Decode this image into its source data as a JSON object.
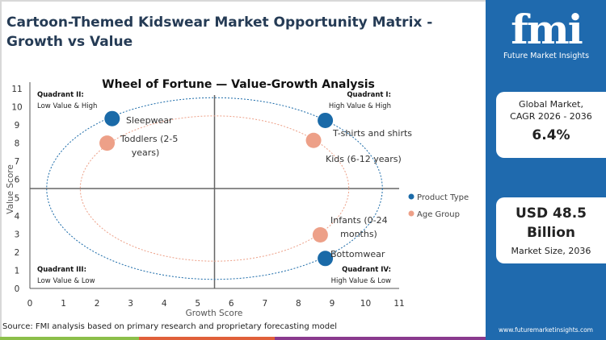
{
  "header": {
    "title": "Cartoon-Themed Kidswear Market Opportunity Matrix - Growth vs Value"
  },
  "sidebar": {
    "logo_text": "fmi",
    "logo_subtitle": "Future Market Insights",
    "cagr_label_1": "Global Market,",
    "cagr_label_2": "CAGR 2026 - 2036",
    "cagr_value": "6.4%",
    "size_value_1": "USD 48.5",
    "size_value_2": "Billion",
    "size_label": "Market Size, 2036",
    "url": "www.futuremarketinsights.com"
  },
  "footer": {
    "source": "Source: FMI analysis based on primary research and proprietary forecasting model"
  },
  "colors": {
    "product_type": "#1a6aa8",
    "age_group": "#eda088",
    "sidebar": "#1f6aae",
    "stripes": [
      "#8cbf4a",
      "#e0603a",
      "#8a3a8e"
    ]
  },
  "chart_data": {
    "type": "scatter",
    "title": "Wheel of Fortune — Value-Growth Analysis",
    "xlabel": "Growth Score",
    "ylabel": "Value Score",
    "xlim": [
      0,
      11
    ],
    "ylim": [
      0,
      11
    ],
    "xticks": [
      "0",
      "1",
      "2",
      "3",
      "4",
      "5",
      "6",
      "7",
      "8",
      "9",
      "10",
      "11"
    ],
    "yticks": [
      "0",
      "1",
      "2",
      "3",
      "4",
      "5",
      "6",
      "7",
      "8",
      "9",
      "10",
      "11"
    ],
    "grid": false,
    "legend": "right",
    "quadrant_dividers": {
      "x": 5.5,
      "y": 5.5
    },
    "quadrants": [
      {
        "name": "Quadrant II:",
        "desc": "Low Value & High",
        "pos": "top-left"
      },
      {
        "name": "Quadrant I:",
        "desc": "High Value & High",
        "pos": "top-right"
      },
      {
        "name": "Quadrant III:",
        "desc": "Low Value & Low",
        "pos": "bottom-left"
      },
      {
        "name": "Quadrant IV:",
        "desc": "High Value & Low",
        "pos": "bottom-right"
      }
    ],
    "rings": [
      {
        "series": "Product Type",
        "center": [
          5.5,
          5.5
        ],
        "radius": 5
      },
      {
        "series": "Age Group",
        "center": [
          5.5,
          5.5
        ],
        "radius": 4
      }
    ],
    "series": [
      {
        "name": "Product Type",
        "points": [
          {
            "label": "Sleepwear",
            "x": 2.45,
            "y": 9.35
          },
          {
            "label": "T-shirts and shirts",
            "x": 8.8,
            "y": 9.25
          },
          {
            "label": "Bottomwear",
            "x": 8.8,
            "y": 1.65
          }
        ]
      },
      {
        "name": "Age Group",
        "points": [
          {
            "label": "Toddlers (2-5 years)",
            "x": 2.3,
            "y": 8.0
          },
          {
            "label": "Kids (6-12 years)",
            "x": 8.45,
            "y": 8.15
          },
          {
            "label": "Infants (0-24 months)",
            "x": 8.65,
            "y": 2.95
          }
        ]
      }
    ]
  }
}
